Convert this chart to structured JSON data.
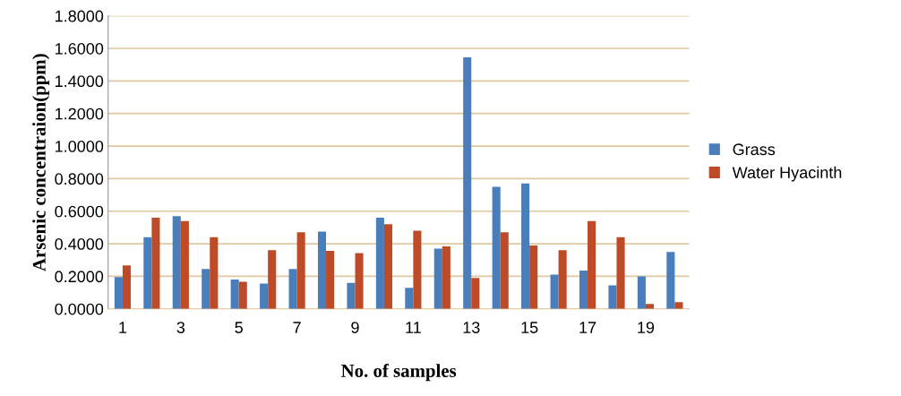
{
  "chart_data": {
    "type": "bar",
    "xlabel": "No. of samples",
    "ylabel": "Arsenic concentraion(ppm)",
    "categories": [
      "1",
      null,
      "3",
      null,
      "5",
      null,
      "7",
      null,
      "9",
      null,
      "11",
      null,
      "13",
      null,
      "15",
      null,
      "17",
      null,
      "19",
      null
    ],
    "series": [
      {
        "name": "Grass",
        "color": "#4a7ebb",
        "values": [
          0.196,
          0.44,
          0.57,
          0.245,
          0.18,
          0.155,
          0.245,
          0.475,
          0.16,
          0.56,
          0.13,
          0.37,
          1.545,
          0.75,
          0.77,
          0.21,
          0.235,
          0.145,
          0.2,
          0.35
        ]
      },
      {
        "name": "Water Hyacinth",
        "color": "#be4b28",
        "values": [
          0.267,
          0.56,
          0.54,
          0.44,
          0.166,
          0.36,
          0.47,
          0.356,
          0.343,
          0.52,
          0.48,
          0.384,
          0.19,
          0.47,
          0.39,
          0.36,
          0.54,
          0.44,
          0.03,
          0.042
        ]
      }
    ],
    "ylim": [
      0,
      1.8
    ],
    "yticks": [
      {
        "value": 0,
        "label": "0.0000"
      },
      {
        "value": 0.2,
        "label": "0.2000"
      },
      {
        "value": 0.4,
        "label": "0.4000"
      },
      {
        "value": 0.6,
        "label": "0.6000"
      },
      {
        "value": 0.8,
        "label": "0.8000"
      },
      {
        "value": 1.0,
        "label": "1.0000"
      },
      {
        "value": 1.2,
        "label": "1.2000"
      },
      {
        "value": 1.4,
        "label": "1.4000"
      },
      {
        "value": 1.6,
        "label": "1.6000"
      },
      {
        "value": 1.8,
        "label": "1.8000"
      }
    ],
    "grid": "y",
    "legend": "right"
  }
}
